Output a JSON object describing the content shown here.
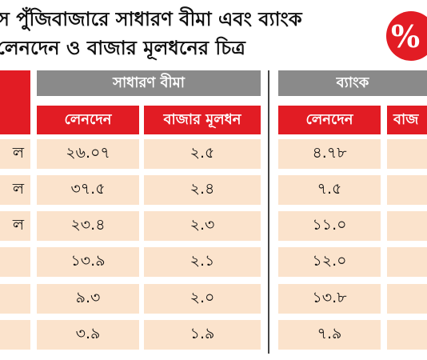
{
  "title": {
    "line1": "স পুঁজিবাজারে সাধারণ বীমা এবং ব্যাংক",
    "line2": "লেনদেন ও বাজার মূলধনের চিত্র"
  },
  "badge": {
    "symbol": "%",
    "color": "#e21c24"
  },
  "colors": {
    "header_gray": "#8a8a8a",
    "subheader_red": "#e21c24",
    "cell_bg": "#fbe3cc"
  },
  "table": {
    "groups": [
      {
        "label": "সাধারণ বীমা"
      },
      {
        "label": "ব্যাংক"
      }
    ],
    "columns": [
      {
        "label": "লেনদেন"
      },
      {
        "label": "বাজার মূলধন"
      },
      {
        "label": "লেনদেন"
      },
      {
        "label": "বাজ"
      }
    ],
    "rows": [
      {
        "label": "ল",
        "values": [
          "২৬.০৭",
          "২.৫",
          "৪.৭৮",
          ""
        ]
      },
      {
        "label": "ল",
        "values": [
          "৩৭.৫",
          "২.৪",
          "৭.৫",
          ""
        ]
      },
      {
        "label": "ল",
        "values": [
          "২৩.৪",
          "২.৩",
          "১১.০",
          ""
        ]
      },
      {
        "label": "",
        "values": [
          "১৩.৯",
          "২.১",
          "১২.০",
          ""
        ]
      },
      {
        "label": "",
        "values": [
          "৯.৩",
          "২.০",
          "১৩.৮",
          ""
        ]
      },
      {
        "label": "",
        "values": [
          "৩.৯",
          "১.৯",
          "৭.৯",
          ""
        ]
      }
    ]
  }
}
